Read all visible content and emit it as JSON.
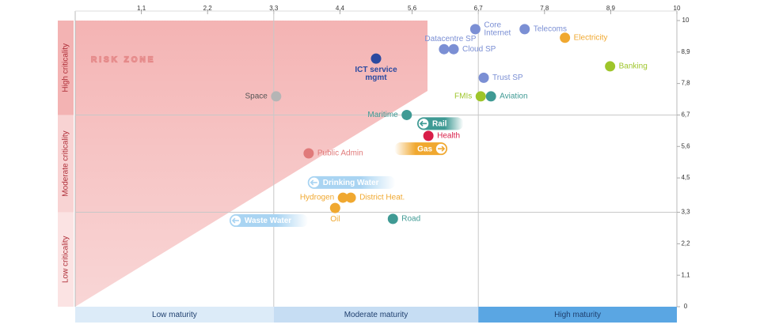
{
  "chart_data": {
    "type": "scatter",
    "annotation": "RISK ZONE",
    "row_labels": [
      "High criticality",
      "Moderate criticality",
      "Low criticality"
    ],
    "column_labels": [
      "Low maturity",
      "Moderate maturity",
      "High maturity"
    ],
    "xlim": [
      0,
      10
    ],
    "ylim": [
      0,
      10
    ],
    "xticks": [
      {
        "value": 1.1,
        "label": "1,1"
      },
      {
        "value": 2.2,
        "label": "2,2"
      },
      {
        "value": 3.3,
        "label": "3,3"
      },
      {
        "value": 4.4,
        "label": "4,4"
      },
      {
        "value": 5.6,
        "label": "5,6"
      },
      {
        "value": 6.7,
        "label": "6,7"
      },
      {
        "value": 7.8,
        "label": "7,8"
      },
      {
        "value": 8.9,
        "label": "8,9"
      },
      10
    ],
    "yticks": [
      10,
      {
        "value": 8.9,
        "label": "8,9"
      },
      {
        "value": 7.8,
        "label": "7,8"
      },
      {
        "value": 6.7,
        "label": "6,7"
      },
      {
        "value": 5.6,
        "label": "5,6"
      },
      {
        "value": 4.5,
        "label": "4,5"
      },
      {
        "value": 3.3,
        "label": "3,3"
      },
      {
        "value": 2.2,
        "label": "2,2"
      },
      {
        "value": 1.1,
        "label": "1,1"
      },
      0
    ],
    "points": [
      {
        "label": [
          "Core",
          "Internet"
        ],
        "x": 6.65,
        "y": 9.7,
        "color": "#7b8fd4",
        "label_side": "right"
      },
      {
        "label": [
          "Telecoms"
        ],
        "x": 7.47,
        "y": 9.7,
        "color": "#7b8fd4",
        "label_side": "right"
      },
      {
        "label": [
          "Electricity"
        ],
        "x": 8.14,
        "y": 9.4,
        "color": "#f0a830",
        "label_side": "right"
      },
      {
        "label": [
          "Datacentre SP"
        ],
        "x": 6.13,
        "y": 9.0,
        "color": "#7b8fd4",
        "label_side": "above"
      },
      {
        "label": [
          "Cloud SP"
        ],
        "x": 6.29,
        "y": 9.0,
        "color": "#7b8fd4",
        "label_side": "right"
      },
      {
        "label": [
          "Banking"
        ],
        "x": 8.89,
        "y": 8.4,
        "color": "#9ec52a",
        "label_side": "right"
      },
      {
        "label": [
          "ICT service",
          "mgmt"
        ],
        "x": 5.0,
        "y": 8.67,
        "color": "#2b4aa0",
        "label_side": "below"
      },
      {
        "label": [
          "Trust SP"
        ],
        "x": 6.79,
        "y": 8.0,
        "color": "#7b8fd4",
        "label_side": "right"
      },
      {
        "label": [
          "FMIs"
        ],
        "x": 6.74,
        "y": 7.35,
        "color": "#9ec52a",
        "label_side": "left"
      },
      {
        "label": [
          "Aviation"
        ],
        "x": 6.91,
        "y": 7.35,
        "color": "#3f9a94",
        "label_side": "right"
      },
      {
        "label": [
          "Space"
        ],
        "x": 3.34,
        "y": 7.35,
        "color": "#b5b5b5",
        "label_side": "left"
      },
      {
        "label": [
          "Maritime"
        ],
        "x": 5.51,
        "y": 6.7,
        "color": "#3f9a94",
        "label_side": "left"
      },
      {
        "label": [
          "Rail"
        ],
        "x": 5.79,
        "y": 6.4,
        "color": "#3f9a94",
        "arrow": "left"
      },
      {
        "label": [
          "Health"
        ],
        "x": 5.87,
        "y": 5.97,
        "color": "#d81e48",
        "label_side": "right"
      },
      {
        "label": [
          "Gas"
        ],
        "x": 6.08,
        "y": 5.52,
        "color": "#f0a830",
        "arrow": "right"
      },
      {
        "label": [
          "Public Admin"
        ],
        "x": 3.88,
        "y": 5.36,
        "color": "#e07a7a",
        "label_side": "right"
      },
      {
        "label": [
          "Drinking Water"
        ],
        "x": 3.97,
        "y": 4.34,
        "color": "#a9d4f2",
        "arrow": "left"
      },
      {
        "label": [
          "Hydrogen"
        ],
        "x": 4.45,
        "y": 3.81,
        "color": "#f0a830",
        "label_side": "left"
      },
      {
        "label": [
          "District Heat."
        ],
        "x": 4.58,
        "y": 3.81,
        "color": "#f0a830",
        "label_side": "right"
      },
      {
        "label": [
          "Oil"
        ],
        "x": 4.32,
        "y": 3.45,
        "color": "#f0a830",
        "label_side": "below"
      },
      {
        "label": [
          "Road"
        ],
        "x": 5.28,
        "y": 3.07,
        "color": "#3f9a94",
        "label_side": "right"
      },
      {
        "label": [
          "Waste Water"
        ],
        "x": 2.67,
        "y": 3.01,
        "color": "#a9d4f2",
        "arrow": "left"
      }
    ]
  }
}
